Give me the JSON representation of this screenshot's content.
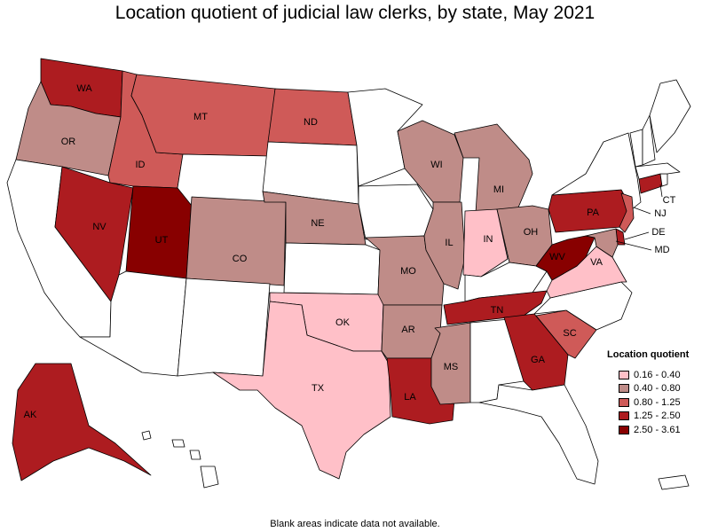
{
  "title": "Location quotient of judicial law clerks, by state, May 2021",
  "footnote": "Blank areas indicate data not available.",
  "legend": {
    "title": "Location quotient",
    "bins": [
      {
        "label": "0.16 - 0.40",
        "color": "#ffc0c8"
      },
      {
        "label": "0.40 - 0.80",
        "color": "#bf8c88"
      },
      {
        "label": "0.80 - 1.25",
        "color": "#cf5a58"
      },
      {
        "label": "1.25 - 2.50",
        "color": "#ad1c20"
      },
      {
        "label": "2.50 - 3.61",
        "color": "#880000"
      }
    ]
  },
  "states": [
    {
      "code": "WA",
      "bin": 3,
      "label": "WA"
    },
    {
      "code": "OR",
      "bin": 1,
      "label": "OR"
    },
    {
      "code": "CA",
      "bin": null
    },
    {
      "code": "ID",
      "bin": 2,
      "label": "ID"
    },
    {
      "code": "NV",
      "bin": 3,
      "label": "NV"
    },
    {
      "code": "UT",
      "bin": 4,
      "label": "UT"
    },
    {
      "code": "AZ",
      "bin": null
    },
    {
      "code": "MT",
      "bin": 2,
      "label": "MT"
    },
    {
      "code": "WY",
      "bin": null
    },
    {
      "code": "CO",
      "bin": 1,
      "label": "CO"
    },
    {
      "code": "NM",
      "bin": null
    },
    {
      "code": "ND",
      "bin": 2,
      "label": "ND"
    },
    {
      "code": "SD",
      "bin": null
    },
    {
      "code": "NE",
      "bin": 1,
      "label": "NE"
    },
    {
      "code": "KS",
      "bin": null
    },
    {
      "code": "OK",
      "bin": 0,
      "label": "OK"
    },
    {
      "code": "TX",
      "bin": 0,
      "label": "TX"
    },
    {
      "code": "MN",
      "bin": null
    },
    {
      "code": "IA",
      "bin": null
    },
    {
      "code": "MO",
      "bin": 1,
      "label": "MO"
    },
    {
      "code": "AR",
      "bin": 1,
      "label": "AR"
    },
    {
      "code": "LA",
      "bin": 3,
      "label": "LA"
    },
    {
      "code": "WI",
      "bin": 1,
      "label": "WI"
    },
    {
      "code": "IL",
      "bin": 1,
      "label": "IL"
    },
    {
      "code": "MS",
      "bin": 1,
      "label": "MS"
    },
    {
      "code": "MI",
      "bin": 1,
      "label": "MI"
    },
    {
      "code": "IN",
      "bin": 0,
      "label": "IN"
    },
    {
      "code": "OH",
      "bin": 1,
      "label": "OH"
    },
    {
      "code": "KY",
      "bin": null
    },
    {
      "code": "TN",
      "bin": 3,
      "label": "TN"
    },
    {
      "code": "AL",
      "bin": null
    },
    {
      "code": "GA",
      "bin": 3,
      "label": "GA"
    },
    {
      "code": "FL",
      "bin": null
    },
    {
      "code": "SC",
      "bin": 2,
      "label": "SC"
    },
    {
      "code": "NC",
      "bin": null
    },
    {
      "code": "VA",
      "bin": 0,
      "label": "VA"
    },
    {
      "code": "WV",
      "bin": 4,
      "label": "WV"
    },
    {
      "code": "PA",
      "bin": 3,
      "label": "PA"
    },
    {
      "code": "NY",
      "bin": null
    },
    {
      "code": "NJ",
      "bin": 2,
      "label": "NJ"
    },
    {
      "code": "DE",
      "bin": 3,
      "label": "DE"
    },
    {
      "code": "MD",
      "bin": 1,
      "label": "MD"
    },
    {
      "code": "CT",
      "bin": 3,
      "label": "CT"
    },
    {
      "code": "RI",
      "bin": null
    },
    {
      "code": "MA",
      "bin": null
    },
    {
      "code": "VT",
      "bin": null
    },
    {
      "code": "NH",
      "bin": null
    },
    {
      "code": "ME",
      "bin": null
    },
    {
      "code": "AK",
      "bin": 3,
      "label": "AK"
    },
    {
      "code": "HI",
      "bin": null
    },
    {
      "code": "PR",
      "bin": null
    }
  ]
}
